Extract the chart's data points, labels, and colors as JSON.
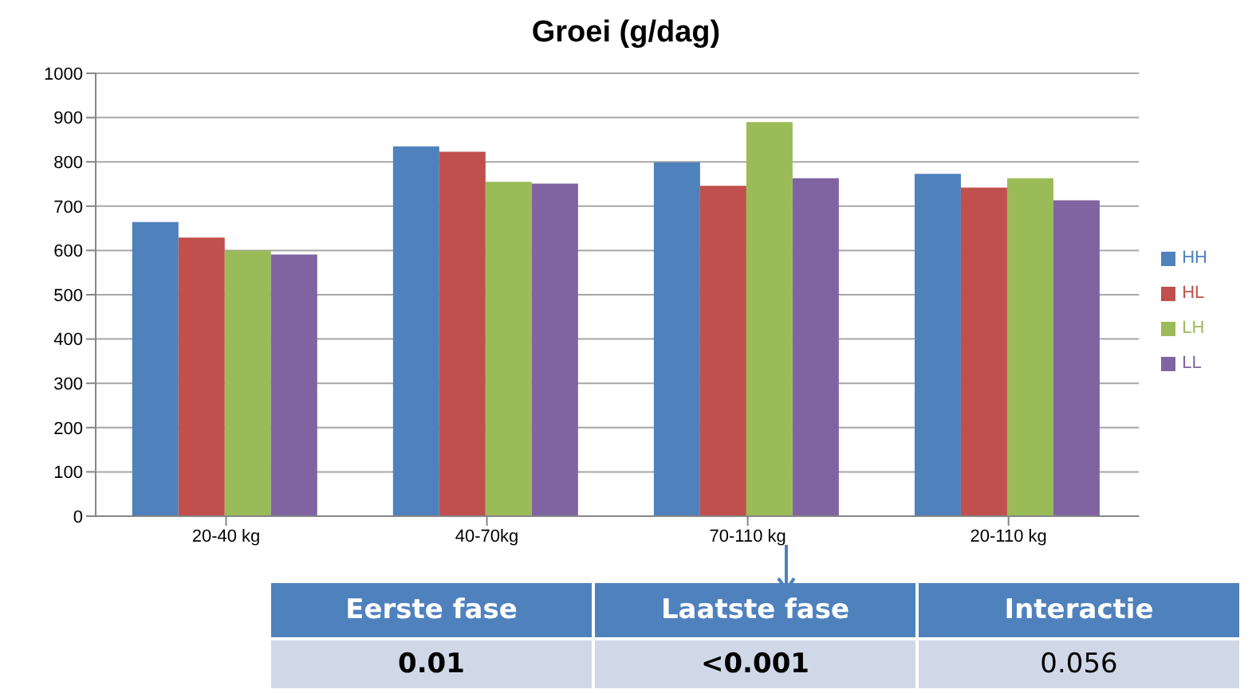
{
  "chart_data": {
    "type": "bar",
    "title": "Groei (g/dag)",
    "categories": [
      "20-40 kg",
      "40-70kg",
      "70-110 kg",
      "20-110 kg"
    ],
    "series": [
      {
        "name": "HH",
        "color": "#4f81bd",
        "values": [
          664,
          835,
          799,
          773
        ]
      },
      {
        "name": "HL",
        "color": "#c0504d",
        "values": [
          629,
          823,
          746,
          742
        ]
      },
      {
        "name": "LH",
        "color": "#9bbb59",
        "values": [
          600,
          755,
          890,
          763
        ]
      },
      {
        "name": "LL",
        "color": "#8064a2",
        "values": [
          591,
          751,
          763,
          713
        ]
      }
    ],
    "ylim": [
      0,
      1000
    ],
    "yticks": [
      0,
      100,
      200,
      300,
      400,
      500,
      600,
      700,
      800,
      900,
      1000
    ],
    "grid": "y",
    "legend": "right",
    "annotations": [
      "Eerste fase",
      "Laatste fase",
      "Interactie",
      "0.01",
      "<0.001",
      "0.056"
    ]
  }
}
